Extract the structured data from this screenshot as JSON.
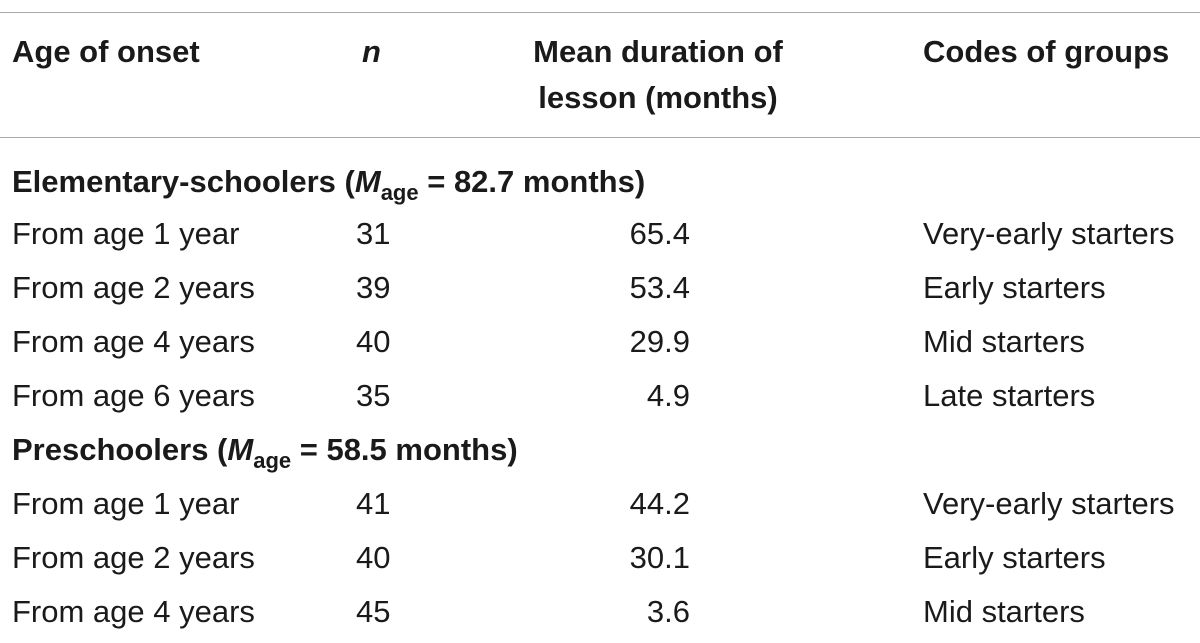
{
  "headers": {
    "age_of_onset": "Age of onset",
    "n": "n",
    "mean_duration_line1": "Mean duration of",
    "mean_duration_line2": "lesson (months)",
    "codes_of_groups": "Codes of groups"
  },
  "sections": [
    {
      "title_prefix": "Elementary-schoolers (",
      "title_m": "M",
      "title_sub": "age",
      "title_suffix": " = 82.7 months)",
      "rows": [
        {
          "age": "From age 1 year",
          "n": "31",
          "duration": "65.4",
          "code": "Very-early starters"
        },
        {
          "age": "From age 2 years",
          "n": "39",
          "duration": "53.4",
          "code": "Early starters"
        },
        {
          "age": "From age 4 years",
          "n": "40",
          "duration": "29.9",
          "code": "Mid starters"
        },
        {
          "age": "From age 6 years",
          "n": "35",
          "duration": "4.9",
          "code": "Late starters"
        }
      ]
    },
    {
      "title_prefix": "Preschoolers (",
      "title_m": "M",
      "title_sub": "age",
      "title_suffix": " = 58.5 months)",
      "rows": [
        {
          "age": "From age 1 year",
          "n": "41",
          "duration": "44.2",
          "code": "Very-early starters"
        },
        {
          "age": "From age 2 years",
          "n": "40",
          "duration": "30.1",
          "code": "Early starters"
        },
        {
          "age": "From age 4 years",
          "n": "45",
          "duration": "3.6",
          "code": "Mid starters"
        }
      ]
    }
  ]
}
